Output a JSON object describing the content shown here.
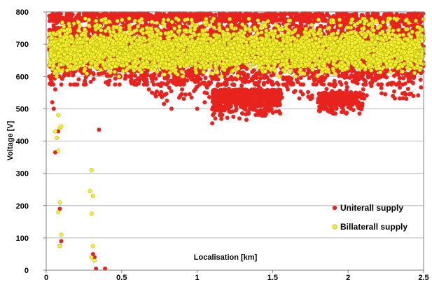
{
  "chart_data": {
    "type": "scatter",
    "title": "",
    "xlabel": "Localisation [km]",
    "ylabel": "Voltage [V]",
    "xlim": [
      0,
      2.5
    ],
    "ylim": [
      0,
      800
    ],
    "xticks": [
      0,
      0.5,
      1,
      1.5,
      2,
      2.5
    ],
    "yticks": [
      0,
      100,
      200,
      300,
      400,
      500,
      600,
      700,
      800
    ],
    "xtick_labels": [
      "0",
      "0.5",
      "1",
      "1.5",
      "2",
      "2.5"
    ],
    "ytick_labels": [
      "0",
      "100",
      "200",
      "300",
      "400",
      "500",
      "600",
      "700",
      "800"
    ],
    "grid": "horizontal",
    "legend_position": "bottom-right",
    "series": [
      {
        "name": "Uniterall supply",
        "color": "#e8231e",
        "points": [
          [
            0.04,
            520
          ],
          [
            0.05,
            500
          ],
          [
            0.06,
            365
          ],
          [
            0.08,
            430
          ],
          [
            0.09,
            190
          ],
          [
            0.09,
            75
          ],
          [
            0.1,
            90
          ],
          [
            0.31,
            50
          ],
          [
            0.32,
            40
          ],
          [
            0.33,
            5
          ],
          [
            0.35,
            435
          ],
          [
            0.39,
            5
          ],
          [
            0.02,
            600
          ],
          [
            0.03,
            580
          ],
          [
            0.06,
            560
          ],
          [
            0.45,
            610
          ],
          [
            0.55,
            600
          ],
          [
            0.6,
            575
          ],
          [
            0.68,
            560
          ],
          [
            0.78,
            515
          ],
          [
            0.8,
            525
          ],
          [
            0.83,
            500
          ],
          [
            0.9,
            560
          ],
          [
            0.95,
            545
          ],
          [
            1.0,
            500
          ],
          [
            1.05,
            520
          ],
          [
            1.1,
            455
          ],
          [
            1.12,
            470
          ],
          [
            1.15,
            480
          ],
          [
            1.18,
            495
          ],
          [
            1.2,
            510
          ],
          [
            1.22,
            490
          ],
          [
            1.24,
            475
          ],
          [
            1.26,
            500
          ],
          [
            1.28,
            470
          ],
          [
            1.3,
            485
          ],
          [
            1.32,
            505
          ],
          [
            1.34,
            490
          ],
          [
            1.36,
            515
          ],
          [
            1.38,
            500
          ],
          [
            1.4,
            520
          ],
          [
            1.42,
            495
          ],
          [
            1.45,
            530
          ],
          [
            1.5,
            550
          ],
          [
            1.55,
            540
          ],
          [
            1.6,
            560
          ],
          [
            1.65,
            555
          ],
          [
            1.7,
            545
          ],
          [
            1.75,
            530
          ],
          [
            1.8,
            520
          ],
          [
            1.85,
            500
          ],
          [
            1.88,
            490
          ],
          [
            1.9,
            485
          ],
          [
            1.92,
            500
          ],
          [
            1.95,
            510
          ],
          [
            2.0,
            530
          ],
          [
            2.05,
            550
          ],
          [
            2.1,
            560
          ],
          [
            2.2,
            575
          ],
          [
            2.3,
            580
          ],
          [
            2.4,
            585
          ],
          [
            2.48,
            590
          ]
        ]
      },
      {
        "name": "Billaterall supply",
        "color": "#f5f032",
        "points": [
          [
            0.06,
            430
          ],
          [
            0.08,
            480
          ],
          [
            0.09,
            440
          ],
          [
            0.08,
            370
          ],
          [
            0.1,
            445
          ],
          [
            0.07,
            410
          ],
          [
            0.09,
            210
          ],
          [
            0.08,
            180
          ],
          [
            0.1,
            110
          ],
          [
            0.09,
            75
          ],
          [
            0.3,
            310
          ],
          [
            0.29,
            245
          ],
          [
            0.31,
            230
          ],
          [
            0.3,
            175
          ],
          [
            0.31,
            75
          ],
          [
            0.3,
            40
          ],
          [
            0.32,
            30
          ]
        ]
      }
    ]
  }
}
